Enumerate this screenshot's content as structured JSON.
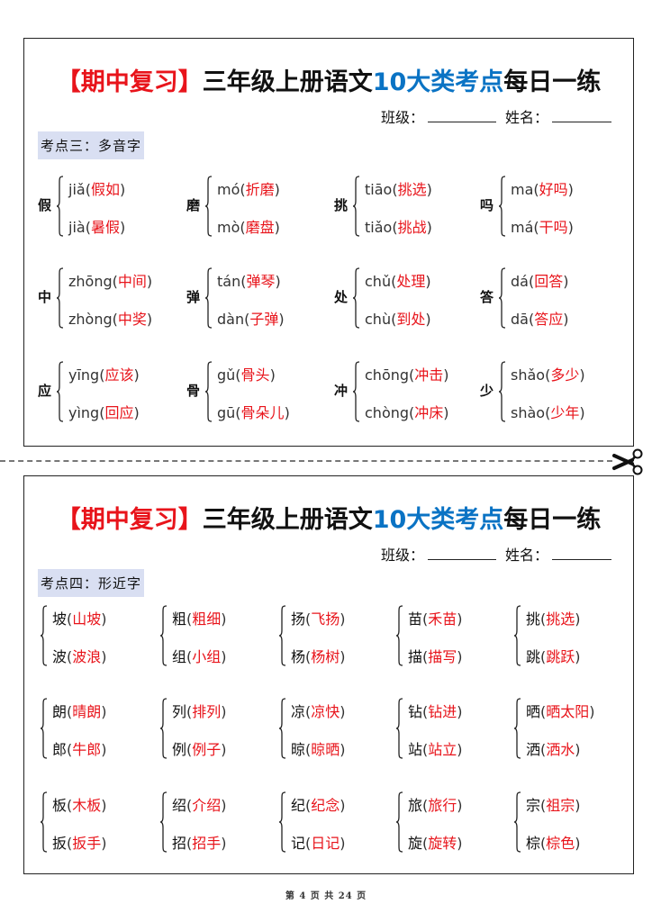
{
  "worksheets": [
    {
      "title": {
        "part1": "【期中复习】",
        "part2": "三年级上册语文",
        "part3": "10大类考点",
        "part4": "每日一练"
      },
      "class_label": "班级：",
      "name_label": "姓名：",
      "section": "考点三：多音字",
      "groups": [
        {
          "head": "假",
          "lines": [
            {
              "pre": "jiǎ",
              "ans": "假如"
            },
            {
              "pre": "jià",
              "ans": "暑假"
            }
          ]
        },
        {
          "head": "磨",
          "lines": [
            {
              "pre": "mó",
              "ans": "折磨"
            },
            {
              "pre": "mò",
              "ans": "磨盘"
            }
          ]
        },
        {
          "head": "挑",
          "lines": [
            {
              "pre": "tiāo",
              "ans": "挑选"
            },
            {
              "pre": "tiǎo",
              "ans": "挑战"
            }
          ]
        },
        {
          "head": "吗",
          "lines": [
            {
              "pre": "ma",
              "ans": "好吗"
            },
            {
              "pre": "má",
              "ans": "干吗"
            }
          ]
        },
        {
          "head": "中",
          "lines": [
            {
              "pre": "zhōng",
              "ans": "中间"
            },
            {
              "pre": "zhòng",
              "ans": "中奖"
            }
          ]
        },
        {
          "head": "弹",
          "lines": [
            {
              "pre": "tán",
              "ans": "弹琴"
            },
            {
              "pre": "dàn",
              "ans": "子弹"
            }
          ]
        },
        {
          "head": "处",
          "lines": [
            {
              "pre": "chǔ",
              "ans": "处理"
            },
            {
              "pre": "chù",
              "ans": "到处"
            }
          ]
        },
        {
          "head": "答",
          "lines": [
            {
              "pre": "dá",
              "ans": "回答"
            },
            {
              "pre": "dā",
              "ans": "答应"
            }
          ]
        },
        {
          "head": "应",
          "lines": [
            {
              "pre": "yīng",
              "ans": "应该"
            },
            {
              "pre": "yìng",
              "ans": "回应"
            }
          ]
        },
        {
          "head": "骨",
          "lines": [
            {
              "pre": "gǔ",
              "ans": "骨头"
            },
            {
              "pre": "gū",
              "ans": "骨朵儿"
            }
          ]
        },
        {
          "head": "冲",
          "lines": [
            {
              "pre": "chōng",
              "ans": "冲击"
            },
            {
              "pre": "chòng",
              "ans": "冲床"
            }
          ]
        },
        {
          "head": "少",
          "lines": [
            {
              "pre": "shǎo",
              "ans": "多少"
            },
            {
              "pre": "shào",
              "ans": "少年"
            }
          ]
        }
      ]
    },
    {
      "title": {
        "part1": "【期中复习】",
        "part2": "三年级上册语文",
        "part3": "10大类考点",
        "part4": "每日一练"
      },
      "class_label": "班级：",
      "name_label": "姓名：",
      "section": "考点四：形近字",
      "groups": [
        {
          "lines": [
            {
              "pre": "坡",
              "ans": "山坡"
            },
            {
              "pre": "波",
              "ans": "波浪"
            }
          ]
        },
        {
          "lines": [
            {
              "pre": "粗",
              "ans": "粗细"
            },
            {
              "pre": "组",
              "ans": "小组"
            }
          ]
        },
        {
          "lines": [
            {
              "pre": "扬",
              "ans": "飞扬"
            },
            {
              "pre": "杨",
              "ans": "杨树"
            }
          ]
        },
        {
          "lines": [
            {
              "pre": "苗",
              "ans": "禾苗"
            },
            {
              "pre": "描",
              "ans": "描写"
            }
          ]
        },
        {
          "lines": [
            {
              "pre": "挑",
              "ans": "挑选"
            },
            {
              "pre": "跳",
              "ans": "跳跃"
            }
          ]
        },
        {
          "lines": [
            {
              "pre": "朗",
              "ans": "晴朗"
            },
            {
              "pre": "郎",
              "ans": "牛郎"
            }
          ]
        },
        {
          "lines": [
            {
              "pre": "列",
              "ans": "排列"
            },
            {
              "pre": "例",
              "ans": "例子"
            }
          ]
        },
        {
          "lines": [
            {
              "pre": "凉",
              "ans": "凉快"
            },
            {
              "pre": "晾",
              "ans": "晾晒"
            }
          ]
        },
        {
          "lines": [
            {
              "pre": "钻",
              "ans": "钻进"
            },
            {
              "pre": "站",
              "ans": "站立"
            }
          ]
        },
        {
          "lines": [
            {
              "pre": "晒",
              "ans": "晒太阳"
            },
            {
              "pre": "洒",
              "ans": "洒水"
            }
          ]
        },
        {
          "lines": [
            {
              "pre": "板",
              "ans": "木板"
            },
            {
              "pre": "扳",
              "ans": "扳手"
            }
          ]
        },
        {
          "lines": [
            {
              "pre": "绍",
              "ans": "介绍"
            },
            {
              "pre": "招",
              "ans": "招手"
            }
          ]
        },
        {
          "lines": [
            {
              "pre": "纪",
              "ans": "纪念"
            },
            {
              "pre": "记",
              "ans": "日记"
            }
          ]
        },
        {
          "lines": [
            {
              "pre": "旅",
              "ans": "旅行"
            },
            {
              "pre": "旋",
              "ans": "旋转"
            }
          ]
        },
        {
          "lines": [
            {
              "pre": "宗",
              "ans": "祖宗"
            },
            {
              "pre": "棕",
              "ans": "棕色"
            }
          ]
        }
      ]
    }
  ],
  "footer": "第 4 页 共 24 页",
  "colors": {
    "answer": "#e8141b",
    "title_red": "#e8141b",
    "title_blue": "#0a73c4",
    "section_bg": "#d9dff2"
  },
  "icons": {
    "cut_line": "scissors-icon"
  }
}
